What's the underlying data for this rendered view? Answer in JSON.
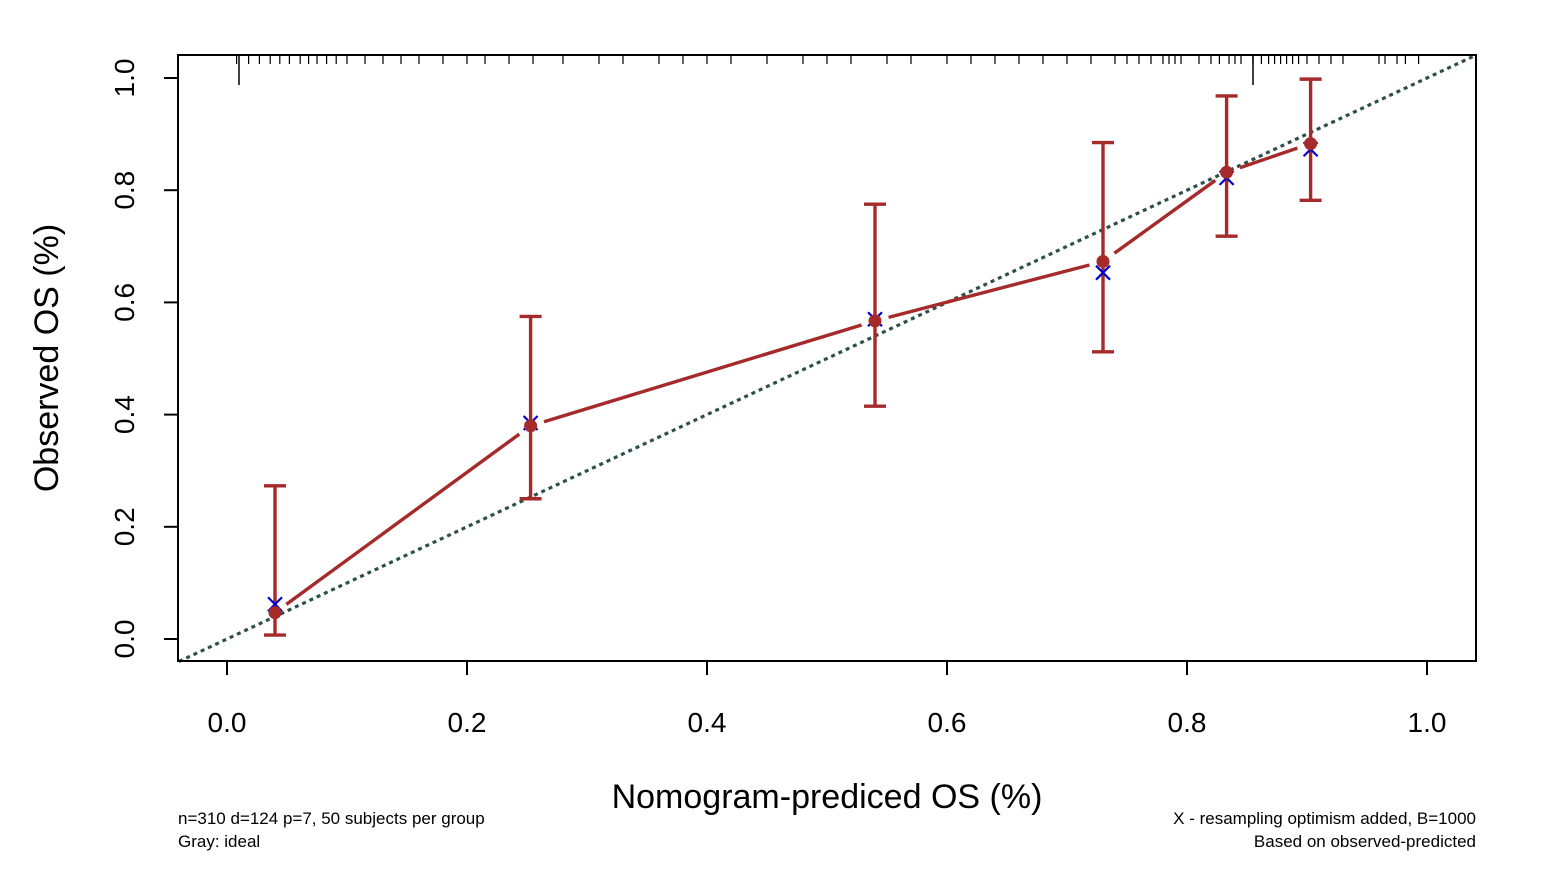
{
  "chart_data": {
    "type": "line",
    "xlabel": "Nomogram-prediced OS (%)",
    "ylabel": "Observed OS (%)",
    "xlim": [
      -0.04,
      1.04
    ],
    "ylim": [
      -0.04,
      1.04
    ],
    "x_ticks": [
      0.0,
      0.2,
      0.4,
      0.6,
      0.8,
      1.0
    ],
    "x_tick_labels": [
      "0.0",
      "0.2",
      "0.4",
      "0.6",
      "0.8",
      "1.0"
    ],
    "y_ticks": [
      0.0,
      0.2,
      0.4,
      0.6,
      0.8,
      1.0
    ],
    "y_tick_labels": [
      "0.0",
      "0.2",
      "0.4",
      "0.6",
      "0.8",
      "1.0"
    ],
    "grid": false,
    "series": [
      {
        "kind": "ideal-line",
        "color": "#2f4f4f",
        "x": [
          -0.04,
          1.04
        ],
        "y": [
          -0.04,
          1.04
        ]
      },
      {
        "kind": "observed",
        "color": "#a52a2a",
        "x": [
          0.04,
          0.253,
          0.54,
          0.73,
          0.833,
          0.903
        ],
        "y": [
          0.047,
          0.38,
          0.567,
          0.673,
          0.832,
          0.883
        ],
        "lower": [
          0.007,
          0.25,
          0.415,
          0.512,
          0.718,
          0.782
        ],
        "upper": [
          0.273,
          0.575,
          0.775,
          0.885,
          0.968,
          0.998
        ]
      },
      {
        "kind": "bias-corrected",
        "color": "#0000cd",
        "marker": "x",
        "x": [
          0.04,
          0.253,
          0.54,
          0.73,
          0.833,
          0.903
        ],
        "y": [
          0.062,
          0.385,
          0.57,
          0.653,
          0.822,
          0.873
        ]
      }
    ],
    "rug": [
      0.008,
      0.018,
      0.027,
      0.036,
      0.044,
      0.052,
      0.061,
      0.068,
      0.075,
      0.083,
      0.091,
      0.1,
      0.115,
      0.13,
      0.145,
      0.16,
      0.18,
      0.2,
      0.215,
      0.235,
      0.255,
      0.28,
      0.31,
      0.33,
      0.36,
      0.38,
      0.4,
      0.42,
      0.45,
      0.48,
      0.5,
      0.52,
      0.55,
      0.57,
      0.6,
      0.62,
      0.64,
      0.66,
      0.68,
      0.7,
      0.72,
      0.74,
      0.75,
      0.76,
      0.77,
      0.78,
      0.785,
      0.79,
      0.795,
      0.81,
      0.82,
      0.827,
      0.835,
      0.84,
      0.845,
      0.855,
      0.862,
      0.868,
      0.873,
      0.878,
      0.883,
      0.888,
      0.893,
      0.9,
      0.91,
      0.92,
      0.93,
      0.96,
      0.965,
      0.975,
      0.982,
      0.993
    ],
    "rug_long": [
      0.01,
      0.855
    ]
  },
  "footnotes": {
    "left_line1": "n=310 d=124 p=7, 50 subjects per group",
    "left_line2": "Gray: ideal",
    "right_line1": "X - resampling optimism added, B=1000",
    "right_line2": "Based on observed-predicted"
  }
}
